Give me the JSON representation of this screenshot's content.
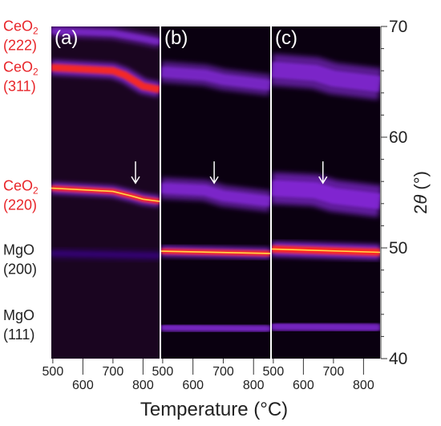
{
  "chart_data": {
    "type": "heatmap",
    "panels": [
      {
        "label": "(a)",
        "x_ticks": [
          {
            "value": 500,
            "text": "500",
            "row": "upper"
          },
          {
            "value": 600,
            "text": "600",
            "row": "lower"
          },
          {
            "value": 700,
            "text": "700",
            "row": "upper"
          },
          {
            "value": 800,
            "text": "800",
            "row": "lower"
          }
        ],
        "xlim": [
          495,
          855
        ],
        "features": [
          {
            "points": [
              [
                495,
                69.6
              ],
              [
                700,
                69.4
              ],
              [
                800,
                68.9
              ],
              [
                855,
                68.6
              ]
            ],
            "intensity": 0.35,
            "width": 0.35
          },
          {
            "points": [
              [
                495,
                66.3
              ],
              [
                700,
                66.0
              ],
              [
                740,
                65.6
              ],
              [
                800,
                64.6
              ],
              [
                855,
                64.3
              ]
            ],
            "intensity": 0.85,
            "width": 0.45
          },
          {
            "points": [
              [
                495,
                55.4
              ],
              [
                700,
                55.1
              ],
              [
                760,
                54.7
              ],
              [
                800,
                54.4
              ],
              [
                855,
                54.2
              ]
            ],
            "intensity": 1.0,
            "width": 0.3
          },
          {
            "points": [
              [
                495,
                49.5
              ],
              [
                855,
                49.3
              ]
            ],
            "intensity": 0.15,
            "width": 0.3
          },
          {
            "points": [
              [
                495,
                42.8
              ],
              [
                855,
                42.8
              ]
            ],
            "intensity": 0.12,
            "width": 0.3
          }
        ],
        "arrow_at": {
          "x": 775,
          "two_theta": 56.8
        }
      },
      {
        "label": "(b)",
        "x_ticks": [
          {
            "value": 500,
            "text": "500",
            "row": "upper"
          },
          {
            "value": 600,
            "text": "600",
            "row": "lower"
          },
          {
            "value": 700,
            "text": "700",
            "row": "upper"
          },
          {
            "value": 800,
            "text": "800",
            "row": "lower"
          }
        ],
        "xlim": [
          495,
          855
        ],
        "features": [
          {
            "points": [
              [
                495,
                65.9
              ],
              [
                640,
                65.6
              ],
              [
                700,
                65.2
              ],
              [
                855,
                64.7
              ]
            ],
            "intensity": 0.4,
            "width": 0.7
          },
          {
            "points": [
              [
                495,
                55.4
              ],
              [
                640,
                55.2
              ],
              [
                700,
                54.7
              ],
              [
                855,
                54.2
              ]
            ],
            "intensity": 0.45,
            "width": 0.7
          },
          {
            "points": [
              [
                495,
                49.7
              ],
              [
                855,
                49.5
              ]
            ],
            "intensity": 1.0,
            "width": 0.3
          },
          {
            "points": [
              [
                495,
                42.8
              ],
              [
                855,
                42.7
              ]
            ],
            "intensity": 0.4,
            "width": 0.3
          }
        ],
        "arrow_at": {
          "x": 670,
          "two_theta": 56.8
        }
      },
      {
        "label": "(c)",
        "x_ticks": [
          {
            "value": 500,
            "text": "500",
            "row": "upper"
          },
          {
            "value": 600,
            "text": "600",
            "row": "lower"
          },
          {
            "value": 700,
            "text": "700",
            "row": "upper"
          },
          {
            "value": 800,
            "text": "800",
            "row": "lower"
          }
        ],
        "xlim": [
          495,
          855
        ],
        "features": [
          {
            "points": [
              [
                495,
                66.1
              ],
              [
                640,
                65.8
              ],
              [
                700,
                65.3
              ],
              [
                855,
                64.8
              ]
            ],
            "intensity": 0.45,
            "width": 1.1
          },
          {
            "points": [
              [
                495,
                55.4
              ],
              [
                640,
                55.2
              ],
              [
                700,
                54.7
              ],
              [
                855,
                54.2
              ]
            ],
            "intensity": 0.55,
            "width": 1.1
          },
          {
            "points": [
              [
                495,
                49.9
              ],
              [
                855,
                49.6
              ]
            ],
            "intensity": 1.0,
            "width": 0.45
          },
          {
            "points": [
              [
                495,
                45.5
              ],
              [
                855,
                45.5
              ]
            ],
            "intensity": 0.15,
            "width": 0.4
          },
          {
            "points": [
              [
                495,
                42.9
              ],
              [
                855,
                42.8
              ]
            ],
            "intensity": 0.35,
            "width": 0.4
          }
        ],
        "arrow_at": {
          "x": 665,
          "two_theta": 56.8
        }
      }
    ],
    "y_axis": {
      "label_symbol": "2θ",
      "label_unit": "(°)",
      "ylim": [
        40,
        70
      ],
      "ticks": [
        70,
        60,
        50,
        40
      ]
    },
    "xlabel": "Temperature (°C)",
    "peak_labels": [
      {
        "name": "CeO",
        "sub": "2",
        "hkl": "(222)",
        "two_theta": 69.3,
        "color": "#e8252a"
      },
      {
        "name": "CeO",
        "sub": "2",
        "hkl": "(311)",
        "two_theta": 65.6,
        "color": "#e8252a"
      },
      {
        "name": "CeO",
        "sub": "2",
        "hkl": "(220)",
        "two_theta": 54.9,
        "color": "#e8252a"
      },
      {
        "name": "MgO",
        "sub": "",
        "hkl": "(200)",
        "two_theta": 49.1,
        "color": "#222222"
      },
      {
        "name": "MgO",
        "sub": "",
        "hkl": "(111)",
        "two_theta": 43.2,
        "color": "#222222"
      }
    ],
    "colors": {
      "background": "#0a0010",
      "low": "#3a0a8a",
      "mid": "#8a2be2",
      "high": "#ff2a1a",
      "peak": "#ffd94a",
      "arrow": "#ffffff"
    }
  }
}
